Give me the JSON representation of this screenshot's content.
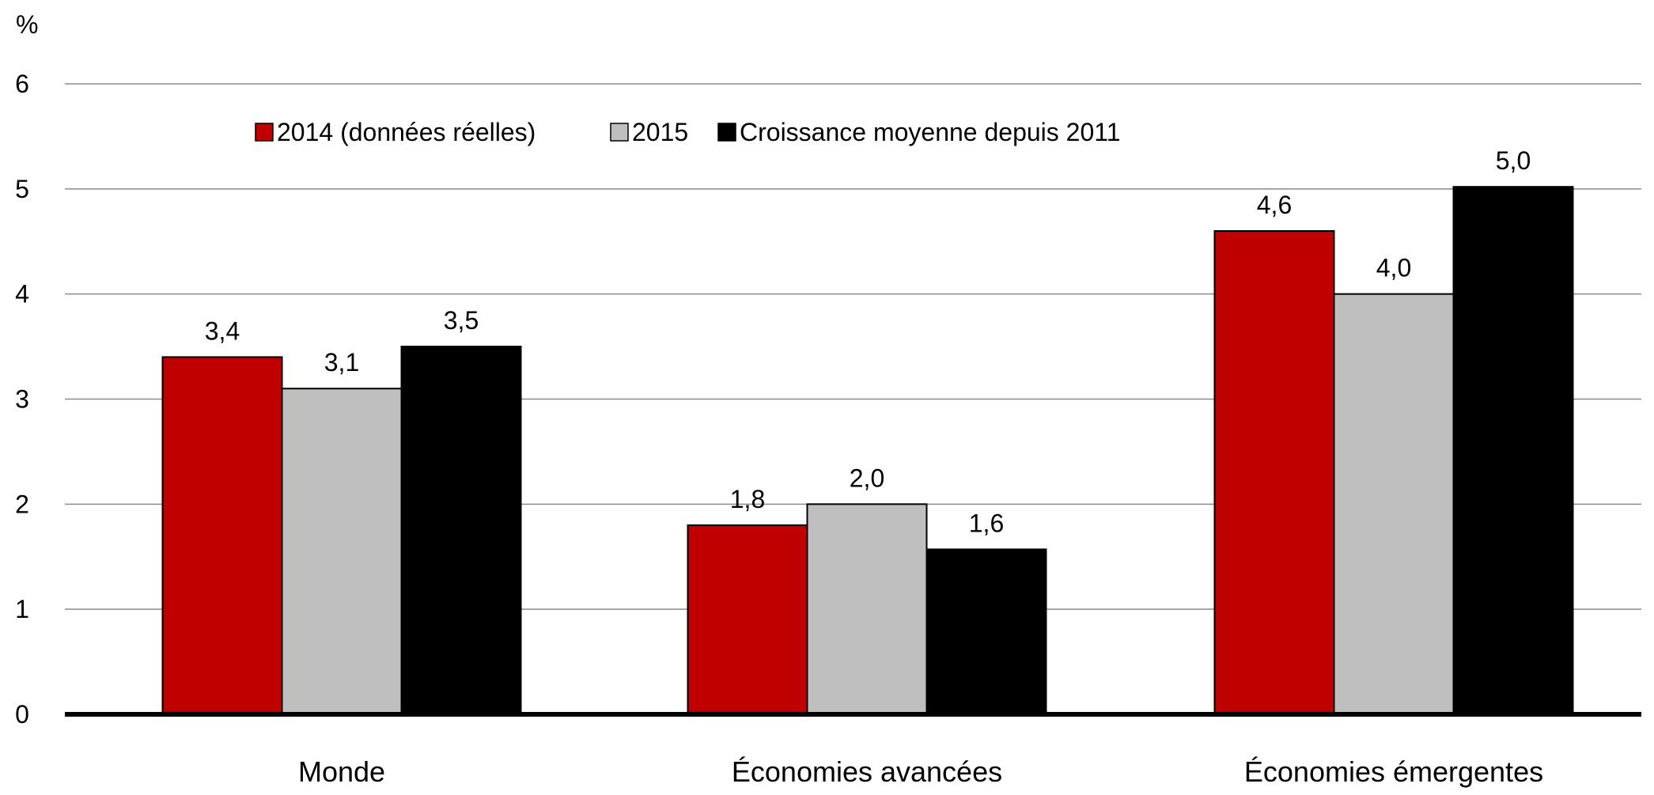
{
  "chart_data": {
    "type": "bar",
    "ylabel": "%",
    "ylim": [
      0,
      6
    ],
    "yticks": [
      0,
      1,
      2,
      3,
      4,
      5,
      6
    ],
    "grid": true,
    "legend_position": "top-left",
    "categories": [
      "Monde",
      "Économies avancées",
      "Économies émergentes"
    ],
    "series": [
      {
        "name": "2014 (données réelles)",
        "color": "#c00000",
        "values": [
          3.4,
          1.8,
          4.6
        ],
        "labels": [
          "3,4",
          "1,8",
          "4,6"
        ]
      },
      {
        "name": "2015",
        "color": "#bfbfbf",
        "values": [
          3.1,
          2.0,
          4.0
        ],
        "labels": [
          "3,1",
          "2,0",
          "4,0"
        ]
      },
      {
        "name": "Croissance moyenne depuis 2011",
        "color": "#000000",
        "values": [
          3.5,
          1.57,
          5.02
        ],
        "labels": [
          "3,5",
          "1,6",
          "5,0"
        ]
      }
    ]
  }
}
